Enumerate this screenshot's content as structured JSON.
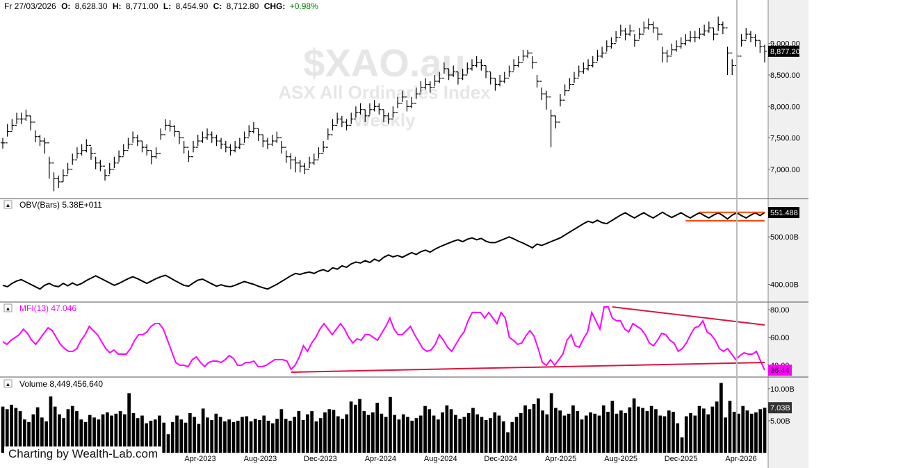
{
  "header": {
    "date": "Fr 27/03/2026",
    "open_label": "O:",
    "open": "8,628.30",
    "high_label": "H:",
    "high": "8,771.00",
    "low_label": "L:",
    "low": "8,454.90",
    "close_label": "C:",
    "close": "8,712.80",
    "chg_label": "CHG:",
    "chg": "+0.98%"
  },
  "watermark": {
    "symbol": "$XAO.au",
    "name": "ASX All Ordinaries Index",
    "period": "Weekly"
  },
  "attribution": "Charting by Wealth-Lab.com",
  "colors": {
    "price": "#000000",
    "obv": "#000000",
    "mfi": "#ff00ff",
    "obv_channel": "#ff4500",
    "mfi_trend": "#dc143c",
    "volume": "#000000",
    "axis_bg": "#f0f0f0",
    "badge_dark": "#000000",
    "badge_mfi": "#ff00ff"
  },
  "chart_data": [
    {
      "type": "ohlc",
      "pane": "price",
      "title": "$XAO.au",
      "ylim": [
        6600,
        9450
      ],
      "y_ticks": [
        "7,000.00",
        "7,500.00",
        "8,000.00",
        "8,500.00",
        "9,000.00"
      ],
      "last_value_label": "8,877.20",
      "x_labels": [
        "Apr-2023",
        "Aug-2023",
        "Dec-2023",
        "Apr-2024",
        "Aug-2024",
        "Dec-2024",
        "Apr-2025",
        "Aug-2025",
        "Dec-2025",
        "Apr-2026"
      ],
      "close": [
        7420,
        7600,
        7700,
        7800,
        7800,
        7850,
        7750,
        7520,
        7450,
        7420,
        7100,
        6850,
        6800,
        6900,
        7000,
        7150,
        7250,
        7300,
        7380,
        7250,
        7100,
        7050,
        6900,
        7000,
        7100,
        7200,
        7300,
        7400,
        7500,
        7450,
        7350,
        7300,
        7200,
        7250,
        7550,
        7700,
        7680,
        7600,
        7500,
        7350,
        7200,
        7350,
        7450,
        7500,
        7550,
        7500,
        7450,
        7400,
        7350,
        7300,
        7350,
        7400,
        7500,
        7600,
        7650,
        7550,
        7450,
        7400,
        7450,
        7500,
        7350,
        7200,
        7150,
        7100,
        7050,
        7000,
        7100,
        7150,
        7250,
        7350,
        7550,
        7700,
        7800,
        7750,
        7700,
        7800,
        7900,
        7950,
        7850,
        7950,
        8000,
        7950,
        7850,
        7800,
        7900,
        8050,
        8150,
        8000,
        8050,
        8200,
        8300,
        8350,
        8300,
        8400,
        8450,
        8600,
        8500,
        8550,
        8450,
        8500,
        8600,
        8650,
        8700,
        8650,
        8550,
        8450,
        8350,
        8400,
        8450,
        8550,
        8650,
        8700,
        8800,
        8850,
        8700,
        8400,
        8200,
        8150,
        7850,
        7750,
        8100,
        8250,
        8350,
        8450,
        8550,
        8600,
        8650,
        8700,
        8800,
        8850,
        8950,
        9000,
        9100,
        9200,
        9150,
        9200,
        9050,
        9150,
        9250,
        9300,
        9250,
        9150,
        8850,
        8800,
        8900,
        8950,
        9000,
        9050,
        9100,
        9100,
        9150,
        9200,
        9250,
        9150,
        9300,
        9250,
        8850,
        8650,
        8800,
        9050,
        9150,
        9100,
        9050,
        8950,
        8877.2
      ],
      "high": [
        7500,
        7720,
        7800,
        7900,
        7900,
        7950,
        7850,
        7620,
        7550,
        7500,
        7200,
        6950,
        6900,
        7000,
        7100,
        7250,
        7350,
        7400,
        7480,
        7350,
        7200,
        7150,
        7000,
        7100,
        7200,
        7300,
        7400,
        7500,
        7600,
        7550,
        7450,
        7400,
        7300,
        7350,
        7650,
        7800,
        7780,
        7700,
        7600,
        7450,
        7300,
        7450,
        7550,
        7600,
        7650,
        7600,
        7550,
        7500,
        7450,
        7400,
        7450,
        7500,
        7600,
        7700,
        7750,
        7650,
        7550,
        7500,
        7550,
        7600,
        7450,
        7300,
        7250,
        7200,
        7150,
        7100,
        7200,
        7250,
        7350,
        7450,
        7650,
        7800,
        7900,
        7850,
        7800,
        7900,
        8000,
        8050,
        7950,
        8050,
        8100,
        8050,
        7950,
        7900,
        8000,
        8150,
        8250,
        8100,
        8150,
        8300,
        8400,
        8450,
        8400,
        8500,
        8550,
        8700,
        8600,
        8650,
        8550,
        8600,
        8700,
        8750,
        8800,
        8750,
        8650,
        8550,
        8450,
        8500,
        8550,
        8650,
        8750,
        8800,
        8900,
        8900,
        8800,
        8500,
        8300,
        8250,
        7950,
        7850,
        8200,
        8350,
        8450,
        8550,
        8650,
        8700,
        8750,
        8800,
        8900,
        8950,
        9050,
        9100,
        9200,
        9300,
        9250,
        9300,
        9150,
        9250,
        9350,
        9400,
        9350,
        9250,
        8950,
        8900,
        9000,
        9050,
        9100,
        9150,
        9200,
        9200,
        9250,
        9300,
        9350,
        9250,
        9430,
        9350,
        8950,
        8750,
        8900,
        9150,
        9250,
        9200,
        9150,
        9050,
        8980
      ],
      "low": [
        7330,
        7520,
        7620,
        7720,
        7720,
        7770,
        7620,
        7430,
        7370,
        7250,
        6850,
        6650,
        6700,
        6800,
        6920,
        7070,
        7170,
        7220,
        7270,
        7150,
        7000,
        6970,
        6820,
        6920,
        7020,
        7120,
        7220,
        7320,
        7420,
        7370,
        7270,
        7220,
        7080,
        7170,
        7470,
        7620,
        7600,
        7520,
        7400,
        7250,
        7120,
        7270,
        7370,
        7420,
        7470,
        7420,
        7370,
        7320,
        7270,
        7220,
        7270,
        7320,
        7420,
        7520,
        7570,
        7450,
        7350,
        7320,
        7370,
        7420,
        7250,
        7100,
        7000,
        6950,
        6950,
        6920,
        7020,
        7070,
        7170,
        7270,
        7470,
        7620,
        7720,
        7670,
        7620,
        7720,
        7820,
        7870,
        7750,
        7870,
        7920,
        7870,
        7750,
        7720,
        7820,
        7970,
        8070,
        7920,
        7970,
        8120,
        8220,
        8270,
        8220,
        8320,
        8370,
        8520,
        8420,
        8470,
        8350,
        8420,
        8520,
        8570,
        8620,
        8570,
        8450,
        8350,
        8250,
        8320,
        8370,
        8470,
        8570,
        8620,
        8720,
        8770,
        8600,
        8300,
        8100,
        7950,
        7350,
        7650,
        8000,
        8170,
        8270,
        8370,
        8470,
        8520,
        8570,
        8620,
        8720,
        8770,
        8870,
        8920,
        9020,
        9120,
        9050,
        9120,
        8950,
        9070,
        9170,
        9220,
        9170,
        9050,
        8700,
        8700,
        8820,
        8870,
        8920,
        8970,
        9020,
        9020,
        9070,
        9120,
        9170,
        9050,
        9200,
        9150,
        8500,
        8500,
        8700,
        8950,
        9070,
        9020,
        8950,
        8850,
        8700
      ]
    },
    {
      "type": "line",
      "pane": "obv",
      "label": "OBV(Bars) 5.38E+011",
      "y_unit": "B",
      "ylim": [
        370,
        575
      ],
      "y_ticks": [
        "400.00B",
        "500.00B"
      ],
      "last_value_label": "551.488",
      "values": [
        398,
        395,
        402,
        407,
        410,
        405,
        400,
        395,
        390,
        398,
        402,
        397,
        395,
        402,
        397,
        403,
        398,
        402,
        408,
        413,
        418,
        413,
        408,
        403,
        398,
        402,
        407,
        412,
        416,
        412,
        407,
        402,
        407,
        412,
        416,
        419,
        414,
        408,
        403,
        398,
        396,
        403,
        409,
        411,
        406,
        401,
        396,
        399,
        396,
        395,
        398,
        402,
        406,
        403,
        400,
        396,
        393,
        390,
        395,
        400,
        406,
        412,
        418,
        423,
        421,
        424,
        426,
        423,
        428,
        431,
        427,
        435,
        432,
        439,
        436,
        443,
        447,
        445,
        450,
        446,
        453,
        449,
        457,
        462,
        458,
        461,
        457,
        462,
        467,
        463,
        469,
        472,
        468,
        474,
        479,
        483,
        487,
        491,
        494,
        490,
        495,
        498,
        494,
        497,
        491,
        488,
        488,
        492,
        496,
        500,
        496,
        491,
        487,
        482,
        477,
        485,
        482,
        486,
        490,
        494,
        498,
        504,
        510,
        516,
        522,
        528,
        533,
        530,
        535,
        530,
        528,
        534,
        540,
        546,
        551,
        545,
        540,
        546,
        551,
        545,
        540,
        546,
        552,
        546,
        541,
        546,
        551,
        545,
        540,
        546,
        551,
        545,
        540,
        546,
        551,
        545,
        538,
        546,
        551,
        545,
        540,
        546,
        551,
        545,
        551.488
      ],
      "channel": {
        "upper": 552,
        "lower": 534
      }
    },
    {
      "type": "line",
      "pane": "mfi",
      "label": "MFI(13) 47.046",
      "ylim": [
        33,
        84
      ],
      "y_ticks": [
        "40.00",
        "60.00",
        "80.00"
      ],
      "last_value_label": "36.44",
      "values": [
        57,
        55,
        58,
        60,
        62,
        66,
        63,
        58,
        55,
        59,
        63,
        67,
        65,
        60,
        55,
        52,
        50,
        50,
        52,
        58,
        62,
        68,
        65,
        62,
        57,
        52,
        49,
        51,
        48,
        48,
        48,
        52,
        58,
        62,
        62,
        64,
        68,
        70,
        70,
        66,
        58,
        50,
        42,
        40,
        40,
        39,
        44,
        46,
        42,
        39,
        42,
        43,
        43,
        42,
        44,
        47,
        45,
        40,
        40,
        42,
        42,
        43,
        39,
        39,
        40,
        42,
        44,
        44,
        44,
        43,
        37,
        40,
        46,
        54,
        50,
        56,
        60,
        66,
        70,
        66,
        62,
        66,
        70,
        66,
        60,
        56,
        59,
        58,
        62,
        62,
        60,
        58,
        63,
        68,
        74,
        66,
        62,
        62,
        65,
        68,
        62,
        57,
        52,
        50,
        51,
        55,
        62,
        58,
        53,
        50,
        55,
        60,
        64,
        72,
        78,
        78,
        78,
        74,
        78,
        74,
        70,
        78,
        74,
        60,
        58,
        55,
        56,
        61,
        65,
        61,
        52,
        42,
        40,
        44,
        40,
        44,
        48,
        58,
        62,
        54,
        53,
        59,
        64,
        78,
        72,
        66,
        82,
        82,
        74,
        72,
        72,
        66,
        64,
        70,
        68,
        66,
        62,
        56,
        54,
        58,
        63,
        62,
        58,
        56,
        50,
        52,
        56,
        62,
        67,
        68,
        72,
        64,
        62,
        58,
        52,
        50,
        52,
        48,
        44,
        47,
        49,
        48,
        48,
        50,
        43,
        36.44
      ],
      "trendlines": [
        {
          "from": 82,
          "to": 69
        },
        {
          "from": 35,
          "to": 42
        }
      ]
    },
    {
      "type": "bar",
      "pane": "volume",
      "label": "Volume 8,449,456,640",
      "y_unit": "B",
      "ylim": [
        0,
        11.5
      ],
      "y_ticks": [
        "5.00B",
        "10.00B"
      ],
      "last_value_label": "7.03B",
      "values": [
        7.2,
        6.8,
        7.5,
        7.0,
        6.5,
        5.2,
        4.8,
        6.0,
        7.1,
        5.5,
        4.9,
        8.8,
        7.2,
        6.0,
        5.4,
        6.8,
        7.3,
        6.5,
        5.2,
        4.8,
        5.9,
        5.5,
        5.2,
        6.0,
        6.3,
        5.8,
        6.1,
        6.5,
        6.0,
        9.3,
        6.2,
        5.4,
        5.8,
        4.6,
        5.0,
        5.2,
        5.8,
        4.7,
        2.9,
        4.8,
        5.8,
        5.2,
        4.7,
        6.2,
        5.6,
        4.5,
        6.9,
        5.5,
        5.1,
        6.1,
        5.6,
        4.9,
        5.2,
        4.8,
        5.0,
        5.6,
        5.7,
        4.9,
        5.3,
        5.1,
        5.8,
        5.0,
        4.6,
        5.3,
        6.8,
        5.3,
        5.0,
        5.6,
        6.5,
        5.1,
        6.0,
        6.5,
        4.9,
        5.4,
        6.3,
        6.8,
        6.7,
        5.7,
        5.3,
        6.0,
        8.0,
        7.5,
        8.4,
        6.5,
        5.9,
        6.3,
        7.8,
        6.1,
        5.6,
        8.7,
        5.9,
        5.2,
        6.0,
        5.6,
        5.0,
        5.4,
        5.8,
        7.3,
        6.8,
        5.8,
        5.2,
        6.3,
        7.4,
        6.8,
        5.9,
        5.3,
        5.6,
        6.2,
        7.0,
        6.0,
        5.6,
        5.1,
        5.4,
        6.3,
        5.8,
        4.9,
        3.2,
        4.8,
        5.6,
        6.2,
        7.4,
        6.8,
        7.6,
        8.5,
        6.6,
        6.0,
        9.3,
        7.0,
        6.6,
        5.8,
        6.1,
        7.4,
        6.5,
        5.2,
        5.8,
        6.3,
        6.1,
        5.8,
        7.4,
        6.4,
        8.1,
        6.1,
        6.6,
        6.2,
        7.1,
        8.5,
        7.2,
        7.0,
        6.5,
        7.3,
        6.8,
        5.8,
        5.7,
        6.6,
        6.4,
        4.6,
        2.4,
        5.7,
        6.2,
        5.8,
        7.3,
        6.9,
        6.0,
        7.2,
        8.0,
        10.9,
        5.5,
        8.1,
        6.4,
        6.1,
        7.3,
        6.6,
        6.1,
        6.3,
        6.8,
        7.03
      ]
    }
  ]
}
